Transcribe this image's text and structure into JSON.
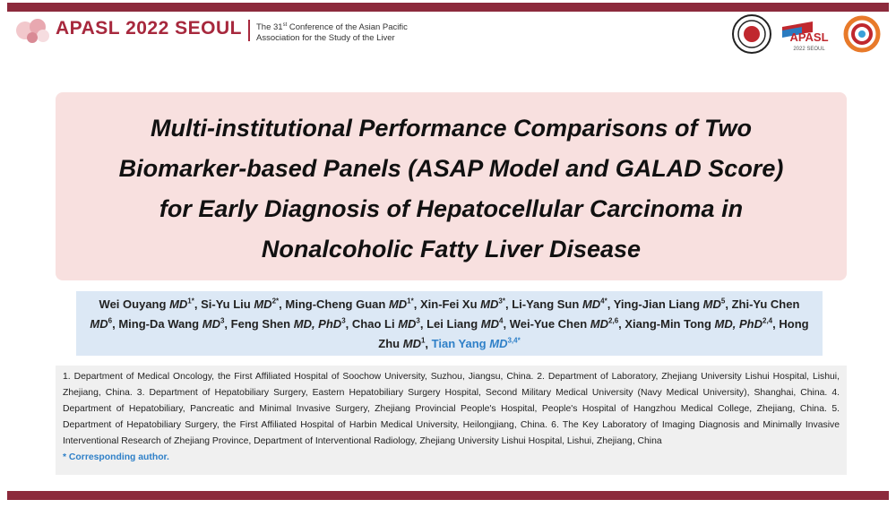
{
  "header": {
    "conference_name": "APASL 2022 SEOUL",
    "desc": {
      "pre": "The 31",
      "sup": "st",
      "post": " Conference of the Asian Pacific",
      "line2": "Association for the Study of the Liver"
    },
    "logo_name": "APASL",
    "logo_sub": "2022 SEOUL"
  },
  "title_lines": [
    "Multi-institutional Performance Comparisons of Two",
    "Biomarker-based Panels (ASAP Model and GALAD Score)",
    "for Early Diagnosis of Hepatocellular Carcinoma in",
    "Nonalcoholic Fatty Liver Disease"
  ],
  "authors": [
    {
      "name": "Wei Ouyang",
      "degree": "MD",
      "sup": "1*",
      "sep": ","
    },
    {
      "name": "Si-Yu Liu",
      "degree": "MD",
      "sup": "2*",
      "sep": ","
    },
    {
      "name": "Ming-Cheng Guan",
      "degree": "MD",
      "sup": "1*",
      "sep": ","
    },
    {
      "name": "Xin-Fei Xu",
      "degree": "MD",
      "sup": "3*",
      "sep": ","
    },
    {
      "name": "Li-Yang Sun",
      "degree": "MD",
      "sup": "4*",
      "sep": ","
    },
    {
      "name": "Ying-Jian Liang",
      "degree": "MD",
      "sup": "5",
      "sep": ","
    },
    {
      "name": "Zhi-Yu Chen",
      "degree": "MD",
      "sup": "6",
      "sep": ","
    },
    {
      "name": "Ming-Da Wang",
      "degree": "MD",
      "sup": "3",
      "sep": ","
    },
    {
      "name": "Feng Shen",
      "degree": "MD, PhD",
      "sup": "3",
      "sep": ","
    },
    {
      "name": "Chao Li",
      "degree": "MD",
      "sup": "3",
      "sep": ","
    },
    {
      "name": "Lei Liang",
      "degree": "MD",
      "sup": "4",
      "sep": ","
    },
    {
      "name": "Wei-Yue Chen",
      "degree": "MD",
      "sup": "2,6",
      "sep": ","
    },
    {
      "name": "Xiang-Min Tong",
      "degree": "MD, PhD",
      "sup": "2,4",
      "sep": ","
    },
    {
      "name": "Hong Zhu",
      "degree": "MD",
      "sup": "1",
      "sep": ","
    },
    {
      "name": "Tian Yang",
      "degree": "MD",
      "sup": "3,4*",
      "color": "#2f80c8"
    }
  ],
  "affiliations": "1. Department of Medical Oncology, the First Affiliated Hospital of Soochow University, Suzhou, Jiangsu, China. 2. Department of Laboratory, Zhejiang University Lishui Hospital, Lishui, Zhejiang, China. 3. Department of Hepatobiliary Surgery, Eastern Hepatobiliary Surgery Hospital, Second Military Medical University (Navy Medical University), Shanghai, China. 4. Department of Hepatobiliary, Pancreatic and Minimal Invasive Surgery, Zhejiang Provincial People's Hospital, People's Hospital of Hangzhou Medical College, Zhejiang, China. 5. Department of Hepatobiliary Surgery, the First Affiliated Hospital of Harbin Medical University, Heilongjiang, China. 6. The Key Laboratory of Imaging Diagnosis and Minimally Invasive Interventional Research of Zhejiang Province, Department of Interventional Radiology, Zhejiang University Lishui Hospital, Lishui, Zhejiang, China",
  "corresponding_note": "* Corresponding author."
}
